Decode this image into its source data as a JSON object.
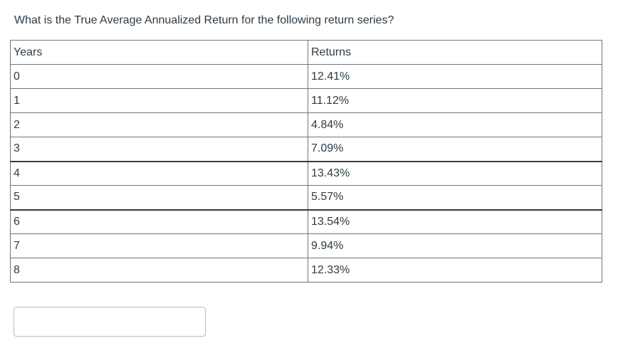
{
  "question": {
    "text": "What is the True Average Annualized Return for the following return series?"
  },
  "table": {
    "headers": [
      "Years",
      "Returns"
    ],
    "rows": [
      {
        "year": "0",
        "return": "12.41%"
      },
      {
        "year": "1",
        "return": "11.12%"
      },
      {
        "year": "2",
        "return": "4.84%"
      },
      {
        "year": "3",
        "return": "7.09%"
      },
      {
        "year": "4",
        "return": "13.43%"
      },
      {
        "year": "5",
        "return": "5.57%"
      },
      {
        "year": "6",
        "return": "13.54%"
      },
      {
        "year": "7",
        "return": "9.94%"
      },
      {
        "year": "8",
        "return": "12.33%"
      }
    ]
  },
  "answer_input": {
    "value": ""
  },
  "colors": {
    "page_background": "#ffffff",
    "text": "#2d3b45",
    "table_border": "#757575",
    "table_border_thick": "#3a3a3a",
    "input_border": "#b9bec4"
  }
}
